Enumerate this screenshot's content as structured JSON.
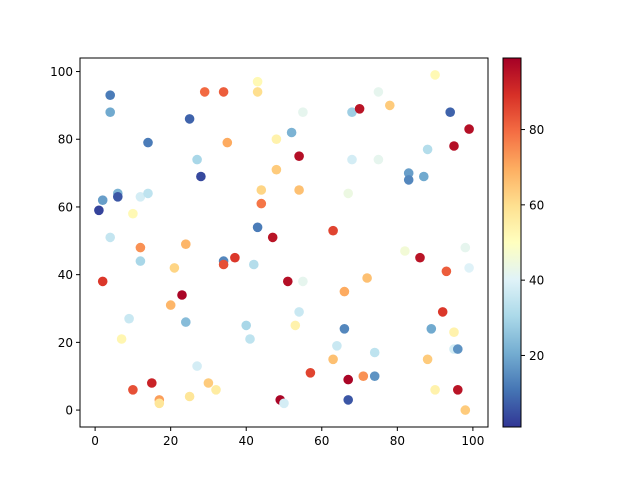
{
  "chart_data": {
    "type": "scatter",
    "title": "",
    "xlabel": "",
    "ylabel": "",
    "xlim": [
      -4,
      104
    ],
    "ylim": [
      -5,
      104
    ],
    "xticks": [
      0,
      20,
      40,
      60,
      80,
      100
    ],
    "yticks": [
      0,
      20,
      40,
      60,
      80,
      100
    ],
    "grid": false,
    "colormap": "RdYlBu_r",
    "colorbar": {
      "range": [
        1,
        99
      ],
      "ticks": [
        20,
        40,
        60,
        80
      ]
    },
    "points": [
      {
        "x": 1,
        "y": 59,
        "c": 3
      },
      {
        "x": 2,
        "y": 62,
        "c": 18
      },
      {
        "x": 2,
        "y": 38,
        "c": 88
      },
      {
        "x": 4,
        "y": 93,
        "c": 12
      },
      {
        "x": 4,
        "y": 88,
        "c": 20
      },
      {
        "x": 4,
        "y": 51,
        "c": 35
      },
      {
        "x": 6,
        "y": 64,
        "c": 22
      },
      {
        "x": 6,
        "y": 63,
        "c": 6
      },
      {
        "x": 7,
        "y": 21,
        "c": 53
      },
      {
        "x": 9,
        "y": 27,
        "c": 36
      },
      {
        "x": 10,
        "y": 6,
        "c": 84
      },
      {
        "x": 10,
        "y": 58,
        "c": 52
      },
      {
        "x": 12,
        "y": 63,
        "c": 38
      },
      {
        "x": 12,
        "y": 48,
        "c": 74
      },
      {
        "x": 12,
        "y": 44,
        "c": 30
      },
      {
        "x": 14,
        "y": 64,
        "c": 34
      },
      {
        "x": 14,
        "y": 79,
        "c": 12
      },
      {
        "x": 15,
        "y": 8,
        "c": 92
      },
      {
        "x": 17,
        "y": 3,
        "c": 72
      },
      {
        "x": 17,
        "y": 2,
        "c": 58
      },
      {
        "x": 20,
        "y": 31,
        "c": 68
      },
      {
        "x": 21,
        "y": 42,
        "c": 62
      },
      {
        "x": 23,
        "y": 34,
        "c": 98
      },
      {
        "x": 24,
        "y": 26,
        "c": 24
      },
      {
        "x": 24,
        "y": 49,
        "c": 68
      },
      {
        "x": 25,
        "y": 4,
        "c": 58
      },
      {
        "x": 25,
        "y": 86,
        "c": 8
      },
      {
        "x": 27,
        "y": 74,
        "c": 30
      },
      {
        "x": 27,
        "y": 13,
        "c": 38
      },
      {
        "x": 28,
        "y": 69,
        "c": 4
      },
      {
        "x": 29,
        "y": 94,
        "c": 80
      },
      {
        "x": 30,
        "y": 8,
        "c": 64
      },
      {
        "x": 32,
        "y": 6,
        "c": 56
      },
      {
        "x": 34,
        "y": 94,
        "c": 82
      },
      {
        "x": 34,
        "y": 44,
        "c": 14
      },
      {
        "x": 34,
        "y": 43,
        "c": 84
      },
      {
        "x": 35,
        "y": 79,
        "c": 70
      },
      {
        "x": 37,
        "y": 45,
        "c": 88
      },
      {
        "x": 40,
        "y": 25,
        "c": 30
      },
      {
        "x": 41,
        "y": 21,
        "c": 34
      },
      {
        "x": 42,
        "y": 43,
        "c": 32
      },
      {
        "x": 43,
        "y": 97,
        "c": 52
      },
      {
        "x": 43,
        "y": 94,
        "c": 60
      },
      {
        "x": 43,
        "y": 54,
        "c": 12
      },
      {
        "x": 44,
        "y": 65,
        "c": 62
      },
      {
        "x": 44,
        "y": 61,
        "c": 78
      },
      {
        "x": 47,
        "y": 51,
        "c": 95
      },
      {
        "x": 48,
        "y": 71,
        "c": 64
      },
      {
        "x": 48,
        "y": 80,
        "c": 54
      },
      {
        "x": 49,
        "y": 3,
        "c": 98
      },
      {
        "x": 50,
        "y": 2,
        "c": 38
      },
      {
        "x": 51,
        "y": 38,
        "c": 96
      },
      {
        "x": 52,
        "y": 82,
        "c": 22
      },
      {
        "x": 53,
        "y": 25,
        "c": 54
      },
      {
        "x": 54,
        "y": 75,
        "c": 96
      },
      {
        "x": 54,
        "y": 65,
        "c": 66
      },
      {
        "x": 54,
        "y": 29,
        "c": 36
      },
      {
        "x": 55,
        "y": 88,
        "c": 42
      },
      {
        "x": 55,
        "y": 38,
        "c": 42
      },
      {
        "x": 57,
        "y": 11,
        "c": 86
      },
      {
        "x": 63,
        "y": 53,
        "c": 86
      },
      {
        "x": 63,
        "y": 15,
        "c": 66
      },
      {
        "x": 64,
        "y": 19,
        "c": 36
      },
      {
        "x": 66,
        "y": 24,
        "c": 14
      },
      {
        "x": 66,
        "y": 35,
        "c": 70
      },
      {
        "x": 67,
        "y": 9,
        "c": 98
      },
      {
        "x": 67,
        "y": 3,
        "c": 6
      },
      {
        "x": 67,
        "y": 64,
        "c": 44
      },
      {
        "x": 68,
        "y": 88,
        "c": 28
      },
      {
        "x": 68,
        "y": 74,
        "c": 38
      },
      {
        "x": 70,
        "y": 89,
        "c": 95
      },
      {
        "x": 71,
        "y": 10,
        "c": 74
      },
      {
        "x": 72,
        "y": 39,
        "c": 66
      },
      {
        "x": 74,
        "y": 17,
        "c": 34
      },
      {
        "x": 74,
        "y": 10,
        "c": 16
      },
      {
        "x": 75,
        "y": 94,
        "c": 42
      },
      {
        "x": 75,
        "y": 74,
        "c": 42
      },
      {
        "x": 78,
        "y": 90,
        "c": 64
      },
      {
        "x": 82,
        "y": 47,
        "c": 46
      },
      {
        "x": 83,
        "y": 70,
        "c": 18
      },
      {
        "x": 83,
        "y": 68,
        "c": 14
      },
      {
        "x": 86,
        "y": 45,
        "c": 95
      },
      {
        "x": 87,
        "y": 69,
        "c": 20
      },
      {
        "x": 88,
        "y": 77,
        "c": 32
      },
      {
        "x": 88,
        "y": 15,
        "c": 64
      },
      {
        "x": 89,
        "y": 24,
        "c": 20
      },
      {
        "x": 90,
        "y": 99,
        "c": 52
      },
      {
        "x": 90,
        "y": 6,
        "c": 54
      },
      {
        "x": 92,
        "y": 29,
        "c": 88
      },
      {
        "x": 93,
        "y": 41,
        "c": 82
      },
      {
        "x": 94,
        "y": 88,
        "c": 8
      },
      {
        "x": 95,
        "y": 78,
        "c": 96
      },
      {
        "x": 95,
        "y": 23,
        "c": 54
      },
      {
        "x": 95,
        "y": 18,
        "c": 38
      },
      {
        "x": 96,
        "y": 18,
        "c": 16
      },
      {
        "x": 96,
        "y": 6,
        "c": 95
      },
      {
        "x": 98,
        "y": 48,
        "c": 42
      },
      {
        "x": 98,
        "y": 0,
        "c": 64
      },
      {
        "x": 99,
        "y": 83,
        "c": 96
      },
      {
        "x": 99,
        "y": 42,
        "c": 40
      }
    ]
  }
}
